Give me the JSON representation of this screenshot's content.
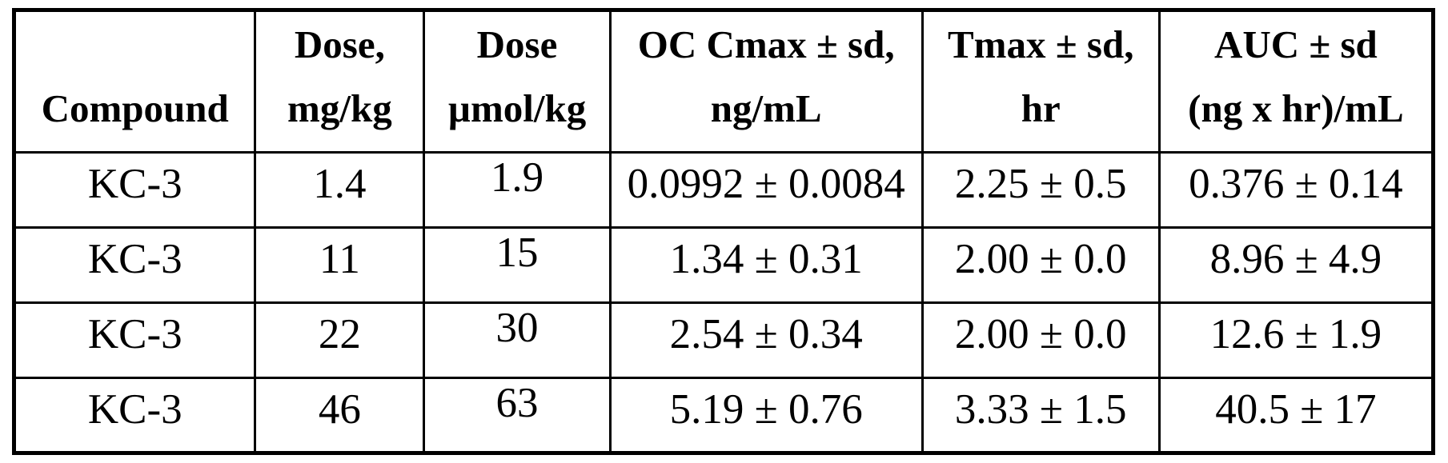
{
  "colors": {
    "background": "#ffffff",
    "border": "#000000",
    "text": "#000000"
  },
  "table": {
    "header": [
      {
        "line1": "",
        "line2": "Compound"
      },
      {
        "line1": "Dose,",
        "line2": "mg/kg"
      },
      {
        "line1": "Dose",
        "line2": "µmol/kg"
      },
      {
        "line1": "OC Cmax ± sd,",
        "line2": "ng/mL"
      },
      {
        "line1": "Tmax ± sd,",
        "line2": "hr"
      },
      {
        "line1": "AUC ± sd",
        "line2": "(ng x hr)/mL"
      }
    ],
    "rows": [
      [
        "KC-3",
        "1.4",
        "1.9",
        "0.0992 ± 0.0084",
        "2.25 ± 0.5",
        "0.376 ± 0.14"
      ],
      [
        "KC-3",
        "11",
        "15",
        "1.34 ± 0.31",
        "2.00 ± 0.0",
        "8.96 ± 4.9"
      ],
      [
        "KC-3",
        "22",
        "30",
        "2.54 ± 0.34",
        "2.00 ± 0.0",
        "12.6 ± 1.9"
      ],
      [
        "KC-3",
        "46",
        "63",
        "5.19 ± 0.76",
        "3.33 ± 1.5",
        "40.5 ± 17"
      ]
    ]
  }
}
